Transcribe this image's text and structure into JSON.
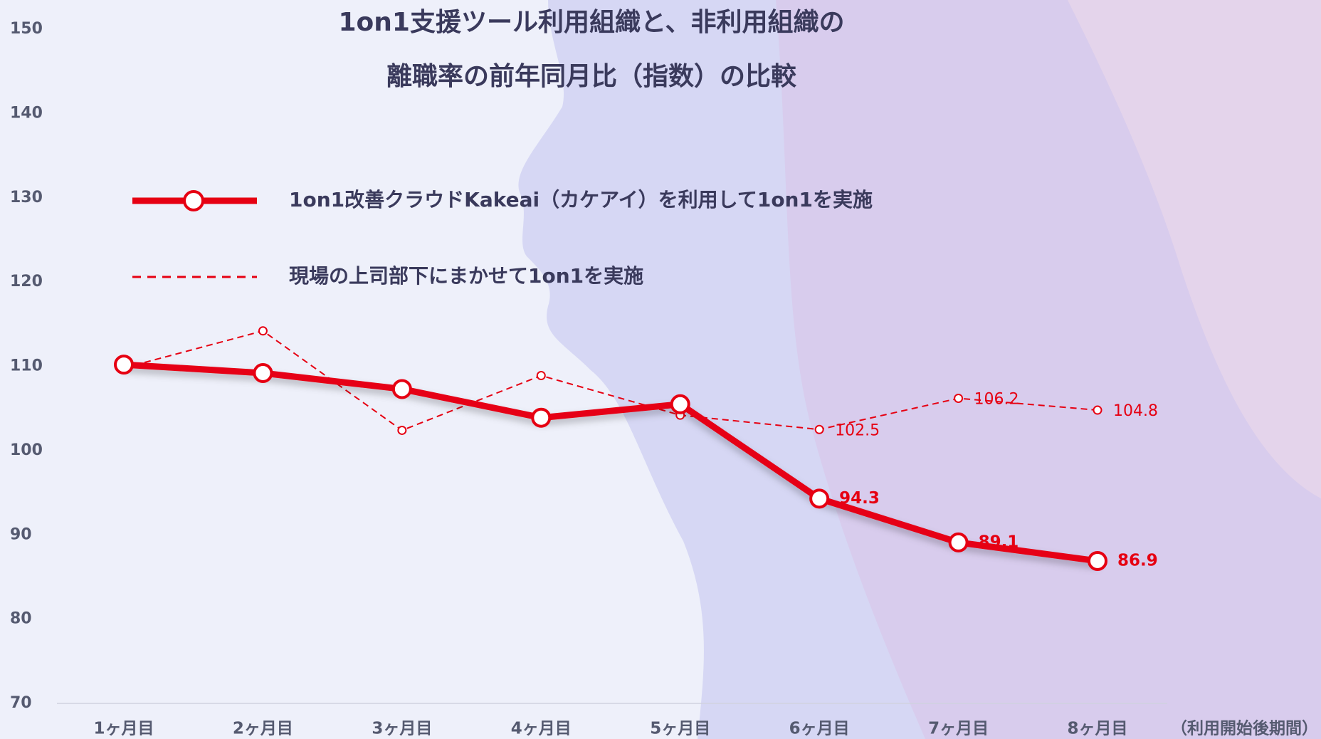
{
  "chart_data": {
    "type": "line",
    "title": [
      "1on1支援ツール利用組織と、非利用組織の",
      "離職率の前年同月比（指数）の比較"
    ],
    "x_label": "（利用開始後期間）",
    "categories": [
      "1ヶ月目",
      "2ヶ月目",
      "3ヶ月目",
      "4ヶ月目",
      "5ヶ月目",
      "6ヶ月目",
      "7ヶ月目",
      "8ヶ月目"
    ],
    "series": [
      {
        "name": "1on1改善クラウドKakeai（カケアイ）を利用して1on1を実施",
        "color": "#e60012",
        "style": "solid",
        "values": [
          110.2,
          109.2,
          107.3,
          103.9,
          105.5,
          94.3,
          89.1,
          86.9
        ],
        "value_labels": [
          null,
          null,
          null,
          null,
          null,
          "94.3",
          "89.1",
          "86.9"
        ]
      },
      {
        "name": "現場の上司部下にまかせて1on1を実施",
        "color": "#e60012",
        "style": "dashed",
        "values": [
          109.8,
          114.2,
          102.4,
          108.9,
          104.2,
          102.5,
          106.2,
          104.8
        ],
        "value_labels": [
          null,
          null,
          null,
          null,
          null,
          "102.5",
          "106.2",
          "104.8"
        ]
      }
    ],
    "ylim": [
      70,
      150
    ],
    "yticks": [
      70,
      80,
      90,
      100,
      110,
      120,
      130,
      140,
      150
    ],
    "grid": false
  }
}
